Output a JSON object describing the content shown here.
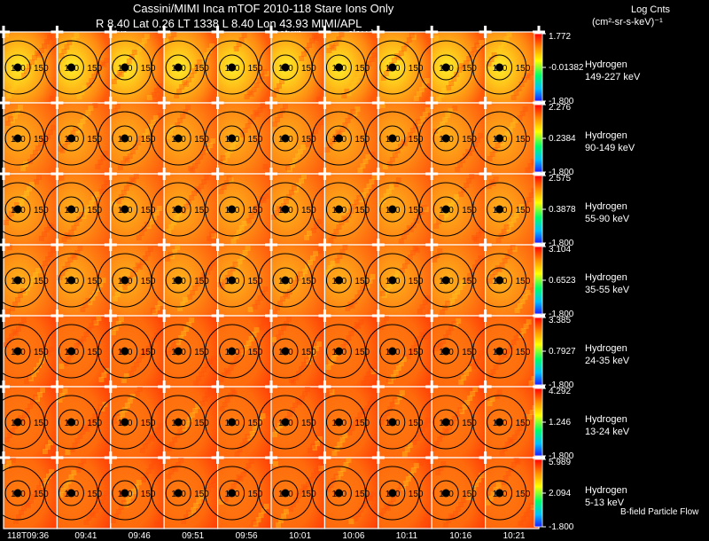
{
  "header": {
    "title": "Cassini/MIMI Inca mTOF  2010-118   Stare    Ions Only",
    "line2": "R          8.40 Lat 0.26 LT 1338 L          8.40 Lon          43.93   MIMI/APL",
    "sub_labels": [
      "satur",
      "saturn",
      "sky-vl"
    ]
  },
  "units": {
    "title": "Log Cnts",
    "subtitle": "(cm²-sr-s-keV)⁻¹"
  },
  "contour_labels": [
    "120",
    "150"
  ],
  "colors": {
    "background": "#000000",
    "contour": "#000000",
    "frame": "#ffffff"
  },
  "rows": [
    {
      "species": "Hydrogen",
      "energy": "149-227 keV",
      "max": "1.772",
      "mid": "-0.01382",
      "min": "-1.800"
    },
    {
      "species": "Hydrogen",
      "energy": "90-149 keV",
      "max": "2.276",
      "mid": "0.2384",
      "min": "-1.800"
    },
    {
      "species": "Hydrogen",
      "energy": "55-90 keV",
      "max": "2.575",
      "mid": "0.3878",
      "min": "-1.800"
    },
    {
      "species": "Hydrogen",
      "energy": "35-55 keV",
      "max": "3.104",
      "mid": "0.6523",
      "min": "-1.800"
    },
    {
      "species": "Hydrogen",
      "energy": "24-35 keV",
      "max": "3.385",
      "mid": "0.7927",
      "min": "-1.800"
    },
    {
      "species": "Hydrogen",
      "energy": "13-24 keV",
      "max": "4.292",
      "mid": "1.246",
      "min": "-1.800"
    },
    {
      "species": "Hydrogen",
      "energy": "5-13 keV",
      "max": "5.989",
      "mid": "2.094",
      "min": "-1.800"
    }
  ],
  "footer": {
    "note": "B-field Particle Flow"
  },
  "chart_data": {
    "type": "heatmap",
    "layout": "7 energy rows x 10 time columns of ENA images",
    "x_ticks": [
      "118T09:36",
      "09:41",
      "09:46",
      "09:51",
      "09:56",
      "10:01",
      "10:06",
      "10:11",
      "10:16",
      "10:21"
    ],
    "colorbar": "log counts, blue (low) to red (high)"
  }
}
